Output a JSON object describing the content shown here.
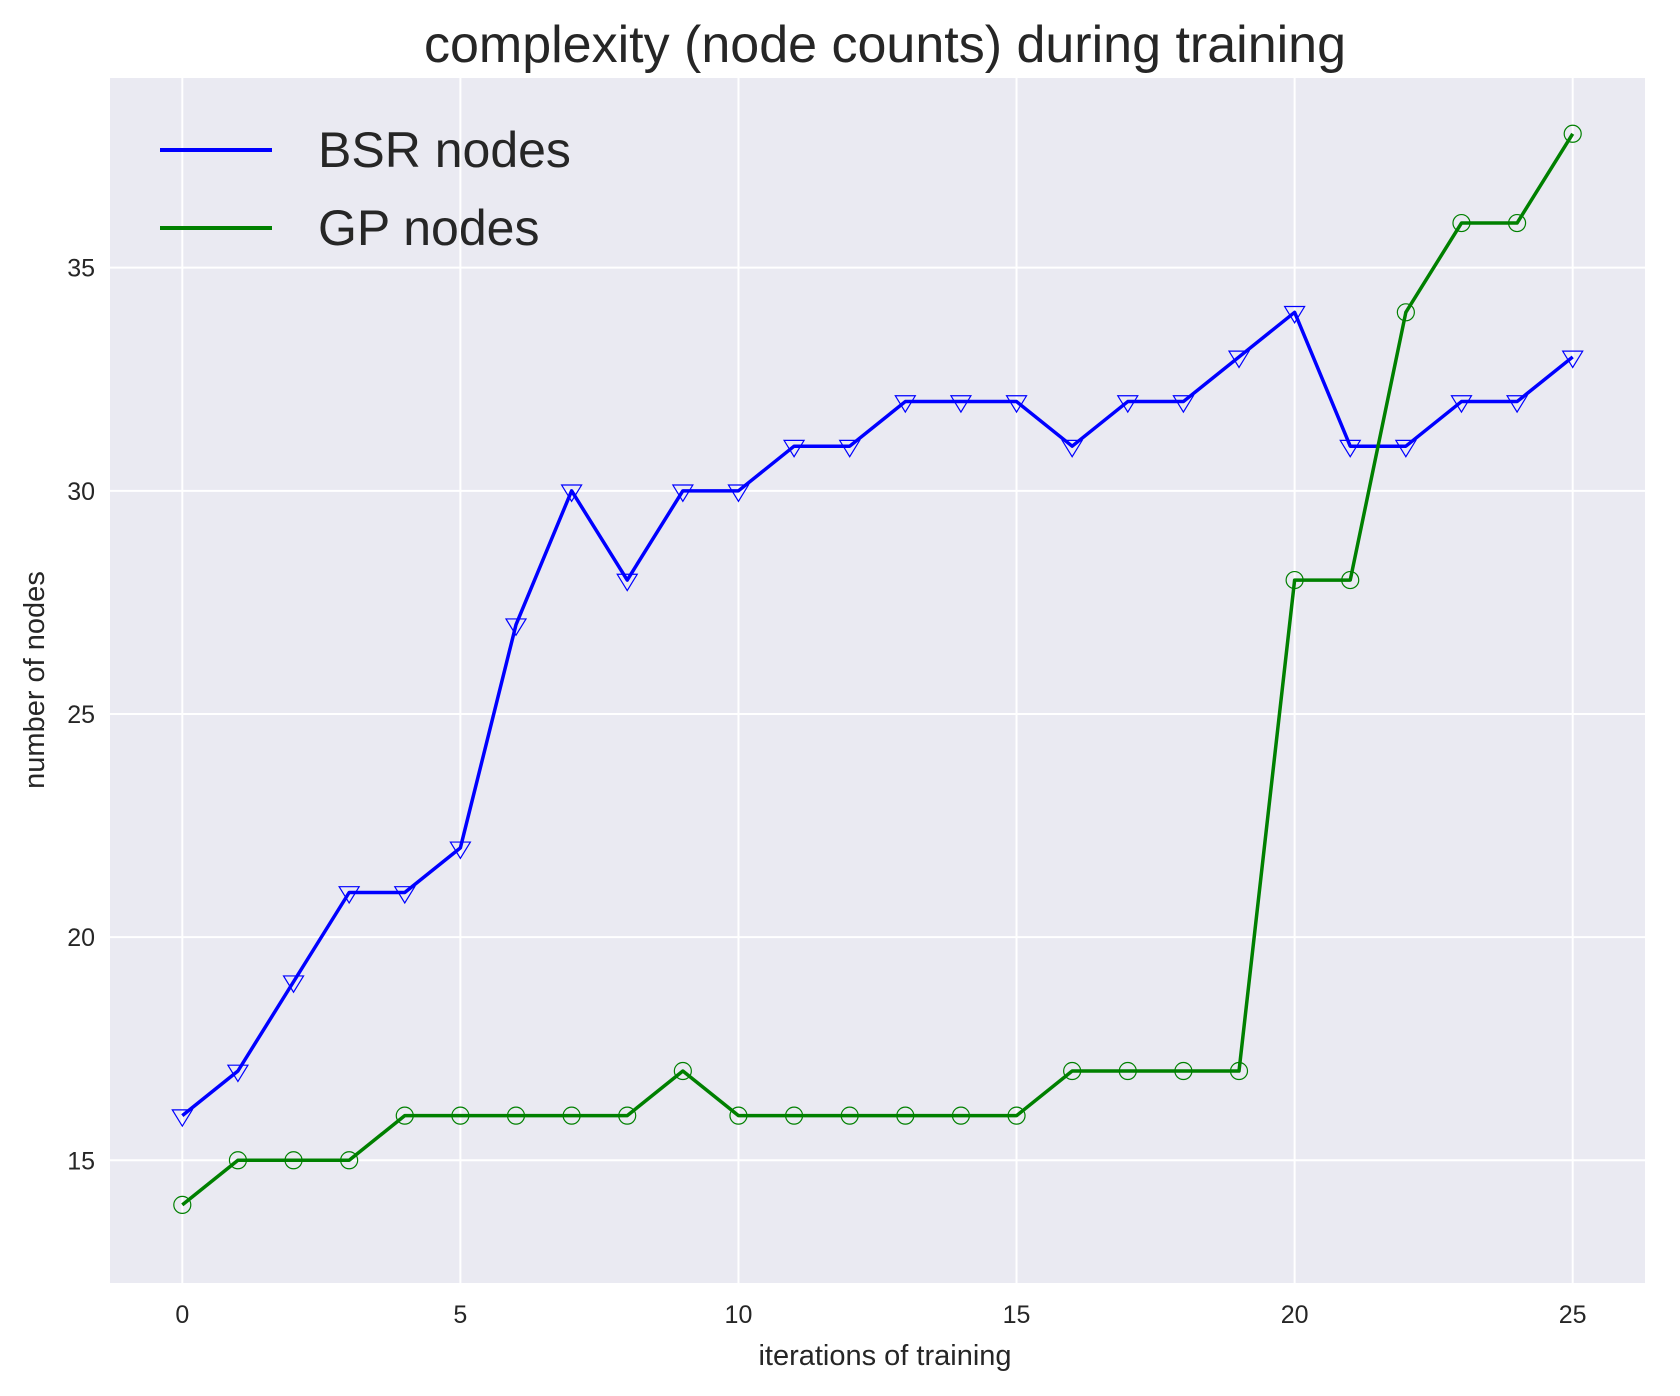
{
  "chart_data": {
    "type": "line",
    "title": "complexity (node counts) during training",
    "xlabel": "iterations of training",
    "ylabel": "number of nodes",
    "xlim": [
      -1.3,
      26.3
    ],
    "ylim": [
      12.25,
      39.25
    ],
    "xticks": [
      0,
      5,
      10,
      15,
      20,
      25
    ],
    "yticks": [
      15,
      20,
      25,
      30,
      35
    ],
    "grid": true,
    "legend_position": "top-left",
    "x": [
      0,
      1,
      2,
      3,
      4,
      5,
      6,
      7,
      8,
      9,
      10,
      11,
      12,
      13,
      14,
      15,
      16,
      17,
      18,
      19,
      20,
      21,
      22,
      23,
      24,
      25
    ],
    "series": [
      {
        "name": "BSR nodes",
        "color": "#0000ff",
        "marker": "triangle-down",
        "values": [
          16,
          17,
          19,
          21,
          21,
          22,
          27,
          30,
          28,
          30,
          30,
          31,
          31,
          32,
          32,
          32,
          31,
          32,
          32,
          33,
          34,
          31,
          31,
          32,
          32,
          33
        ]
      },
      {
        "name": "GP nodes",
        "color": "#008000",
        "marker": "circle",
        "values": [
          14,
          15,
          15,
          15,
          16,
          16,
          16,
          16,
          16,
          17,
          16,
          16,
          16,
          16,
          16,
          16,
          17,
          17,
          17,
          17,
          28,
          28,
          34,
          36,
          36,
          38
        ]
      }
    ],
    "plot_background": "#eaeaf2",
    "grid_color": "#ffffff"
  }
}
